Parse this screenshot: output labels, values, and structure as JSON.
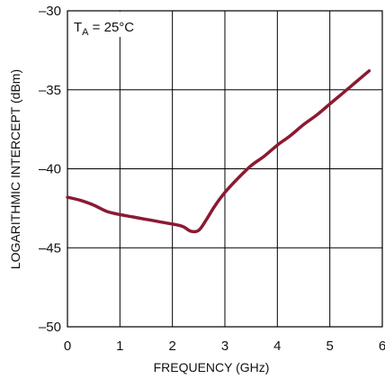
{
  "chart_data": {
    "type": "line",
    "xlabel": "FREQUENCY (GHz)",
    "ylabel": "LOGARITHMIC INTERCEPT (dBm)",
    "xlim": [
      0,
      6
    ],
    "ylim": [
      -50,
      -30
    ],
    "x_ticks": [
      "0",
      "1",
      "2",
      "3",
      "4",
      "5",
      "6"
    ],
    "y_ticks": [
      "–30",
      "–35",
      "–40",
      "–45",
      "–50"
    ],
    "grid": true,
    "annotation": {
      "main": "T",
      "sub": "A",
      "rest": " = 25°C"
    },
    "line_color": "#8b1a32",
    "series": [
      {
        "x": [
          0,
          0.25,
          0.5,
          0.75,
          1.0,
          1.25,
          1.5,
          1.75,
          2.0,
          2.2,
          2.35,
          2.5,
          2.65,
          2.8,
          3.0,
          3.25,
          3.5,
          3.75,
          4.0,
          4.25,
          4.5,
          4.75,
          5.0,
          5.25,
          5.5,
          5.75
        ],
        "y": [
          -41.8,
          -42.0,
          -42.3,
          -42.7,
          -42.9,
          -43.05,
          -43.2,
          -43.35,
          -43.5,
          -43.65,
          -43.95,
          -43.9,
          -43.2,
          -42.4,
          -41.5,
          -40.6,
          -39.8,
          -39.2,
          -38.5,
          -37.9,
          -37.2,
          -36.6,
          -35.9,
          -35.2,
          -34.5,
          -33.8
        ]
      }
    ]
  }
}
